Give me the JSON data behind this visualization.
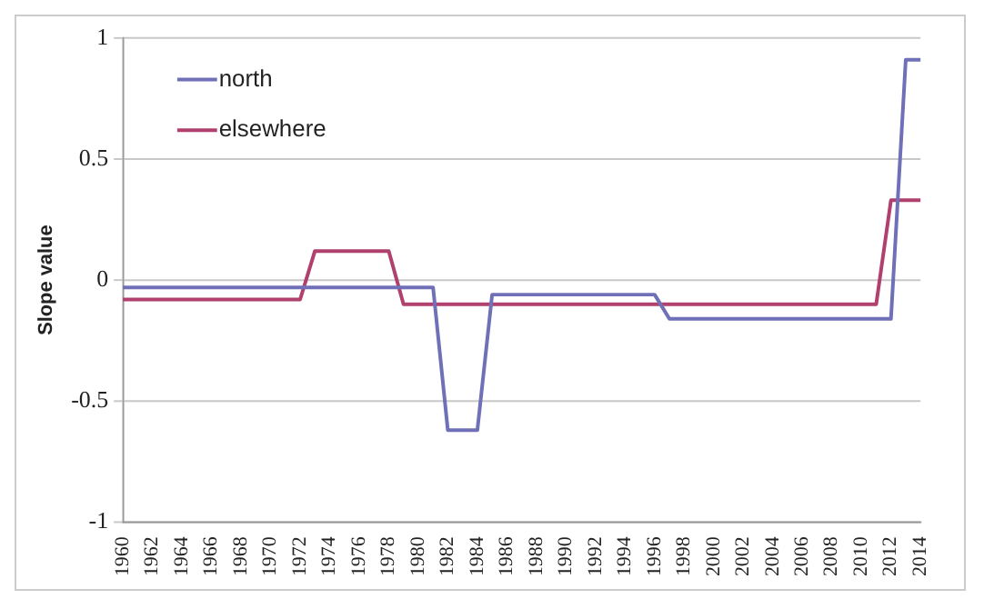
{
  "chart_data": {
    "type": "line",
    "ylabel": "Slope value",
    "categories": [
      "1960",
      null,
      "1962",
      null,
      "1964",
      null,
      "1966",
      null,
      "1968",
      null,
      "1970",
      null,
      "1972",
      null,
      "1974",
      null,
      "1976",
      null,
      "1978",
      null,
      "1980",
      null,
      "1982",
      null,
      "1984",
      null,
      "1986",
      null,
      "1988",
      null,
      "1990",
      null,
      "1992",
      null,
      "1994",
      null,
      "1996",
      null,
      "1998",
      null,
      "2000",
      null,
      "2002",
      null,
      "2004",
      null,
      "2006",
      null,
      "2008",
      null,
      "2010",
      null,
      "2012",
      null,
      "2014"
    ],
    "series": [
      {
        "name": "north",
        "color": "#7070b8",
        "values": [
          -0.03,
          -0.03,
          -0.03,
          -0.03,
          -0.03,
          -0.03,
          -0.03,
          -0.03,
          -0.03,
          -0.03,
          -0.03,
          -0.03,
          -0.03,
          -0.03,
          -0.03,
          -0.03,
          -0.03,
          -0.03,
          -0.03,
          -0.03,
          -0.03,
          -0.03,
          -0.62,
          -0.62,
          -0.62,
          -0.06,
          -0.06,
          -0.06,
          -0.06,
          -0.06,
          -0.06,
          -0.06,
          -0.06,
          -0.06,
          -0.06,
          -0.06,
          -0.06,
          -0.16,
          -0.16,
          -0.16,
          -0.16,
          -0.16,
          -0.16,
          -0.16,
          -0.16,
          -0.16,
          -0.16,
          -0.16,
          -0.16,
          -0.16,
          -0.16,
          -0.16,
          -0.16,
          0.91,
          0.91
        ]
      },
      {
        "name": "elsewhere",
        "color": "#b0406e",
        "values": [
          -0.08,
          -0.08,
          -0.08,
          -0.08,
          -0.08,
          -0.08,
          -0.08,
          -0.08,
          -0.08,
          -0.08,
          -0.08,
          -0.08,
          -0.08,
          0.12,
          0.12,
          0.12,
          0.12,
          0.12,
          0.12,
          -0.1,
          -0.1,
          -0.1,
          -0.1,
          -0.1,
          -0.1,
          -0.1,
          -0.1,
          -0.1,
          -0.1,
          -0.1,
          -0.1,
          -0.1,
          -0.1,
          -0.1,
          -0.1,
          -0.1,
          -0.1,
          -0.1,
          -0.1,
          -0.1,
          -0.1,
          -0.1,
          -0.1,
          -0.1,
          -0.1,
          -0.1,
          -0.1,
          -0.1,
          -0.1,
          -0.1,
          -0.1,
          -0.1,
          0.33,
          0.33,
          0.33
        ]
      }
    ],
    "ylim": [
      -1,
      1
    ],
    "yticks": [
      -1,
      -0.5,
      0,
      0.5,
      1
    ],
    "grid": "y",
    "legend": "top left",
    "marker": "none",
    "line_style": "solid"
  }
}
